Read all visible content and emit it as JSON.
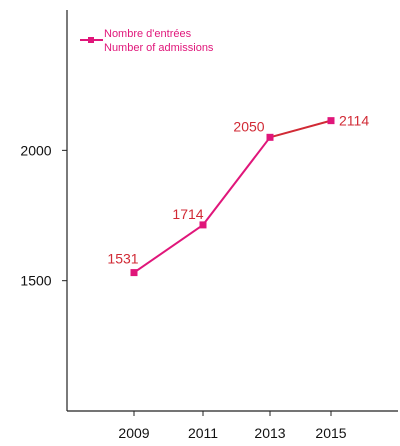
{
  "chart_data": {
    "type": "line",
    "title": "",
    "xlabel": "",
    "ylabel": "",
    "x": [
      "2009",
      "2011",
      "2013",
      "2015"
    ],
    "series": [
      {
        "name": "Nombre d'entrées\nNumber of admissions",
        "values": [
          1531,
          1714,
          2050,
          2114
        ]
      }
    ],
    "data_labels": [
      "1531",
      "1714",
      "2050",
      "2114"
    ],
    "yticks": [
      1500,
      2000
    ],
    "ytick_labels": [
      "1500",
      "2000"
    ],
    "ylim": [
      1000,
      2550
    ],
    "grid": false,
    "legend_position": "top-left",
    "legend": {
      "line1": "Nombre d'entrées",
      "line2": "Number of admissions"
    },
    "colors": {
      "series": "#e0167a",
      "line_last_segment": "#d12a35",
      "labels": "#d12a35",
      "axis": "#222222"
    }
  }
}
